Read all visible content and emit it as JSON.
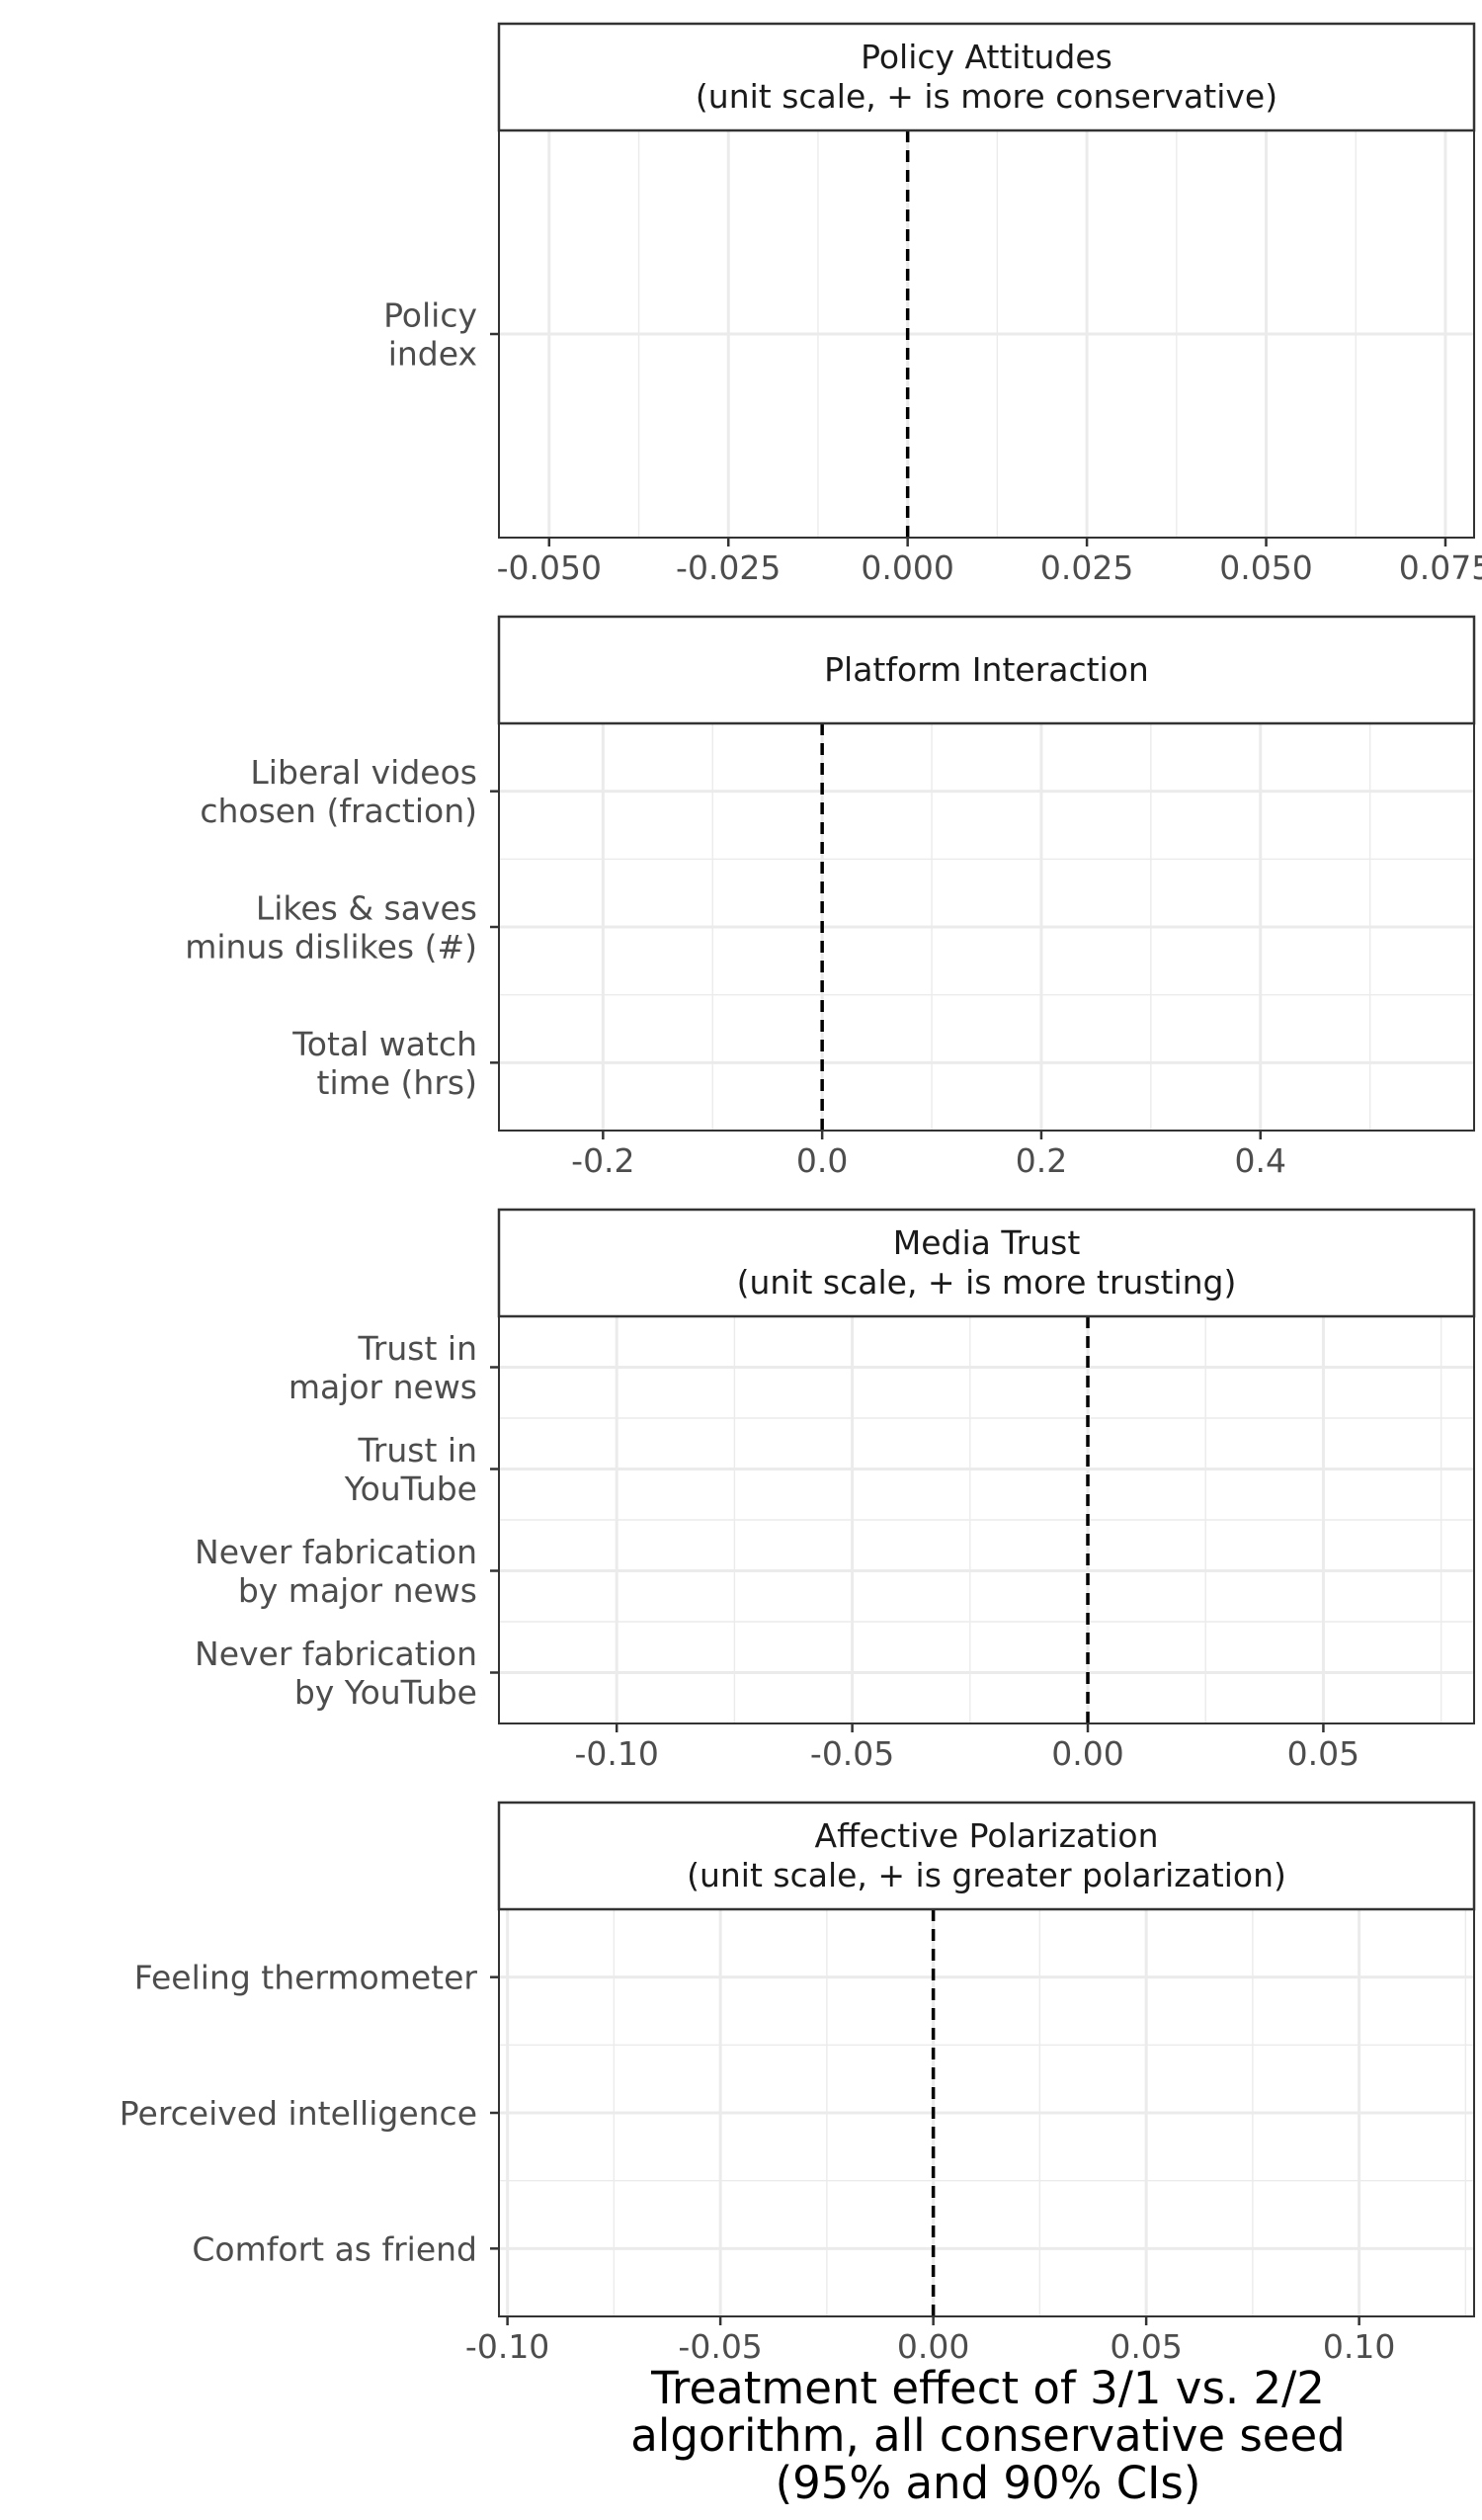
{
  "chart_data": [
    {
      "type": "forest",
      "facet_title": [
        "Policy Attitudes",
        "(unit scale, + is more conservative)"
      ],
      "categories": [
        [
          "Policy",
          "index"
        ]
      ],
      "xlim": [
        -0.057,
        0.079
      ],
      "xticks": [
        -0.05,
        -0.025,
        0.0,
        0.025,
        0.05,
        0.075
      ],
      "xtick_labels": [
        "-0.050",
        "-0.025",
        "0.000",
        "0.025",
        "0.050",
        "0.075"
      ],
      "reference_line": 0,
      "estimates": []
    },
    {
      "type": "forest",
      "facet_title": [
        "Platform Interaction"
      ],
      "categories": [
        [
          "Liberal videos",
          "chosen (fraction)"
        ],
        [
          "Likes & saves",
          "minus dislikes (#)"
        ],
        [
          "Total watch",
          "time (hrs)"
        ]
      ],
      "xlim": [
        -0.295,
        0.595
      ],
      "xticks": [
        -0.2,
        0.0,
        0.2,
        0.4
      ],
      "xtick_labels": [
        "-0.2",
        "0.0",
        "0.2",
        "0.4"
      ],
      "reference_line": 0,
      "estimates": []
    },
    {
      "type": "forest",
      "facet_title": [
        "Media Trust",
        "(unit scale, + is more trusting)"
      ],
      "categories": [
        [
          "Trust in",
          "major news"
        ],
        [
          "Trust in",
          "YouTube"
        ],
        [
          "Never fabrication",
          "by major news"
        ],
        [
          "Never fabrication",
          "by YouTube"
        ]
      ],
      "xlim": [
        -0.125,
        0.082
      ],
      "xticks": [
        -0.1,
        -0.05,
        0.0,
        0.05
      ],
      "xtick_labels": [
        "-0.10",
        "-0.05",
        "0.00",
        "0.05"
      ],
      "reference_line": 0,
      "estimates": []
    },
    {
      "type": "forest",
      "facet_title": [
        "Affective Polarization",
        "(unit scale, + is greater polarization)"
      ],
      "categories": [
        [
          "Feeling thermometer"
        ],
        [
          "Perceived intelligence"
        ],
        [
          "Comfort as friend"
        ]
      ],
      "xlim": [
        -0.102,
        0.127
      ],
      "xticks": [
        -0.1,
        -0.05,
        0.0,
        0.05,
        0.1
      ],
      "xtick_labels": [
        "-0.10",
        "-0.05",
        "0.00",
        "0.05",
        "0.10"
      ],
      "reference_line": 0,
      "estimates": []
    }
  ],
  "xlabel": [
    "Treatment effect of 3/1 vs. 2/2",
    "algorithm, all conservative seed",
    "(95% and 90% CIs)"
  ]
}
